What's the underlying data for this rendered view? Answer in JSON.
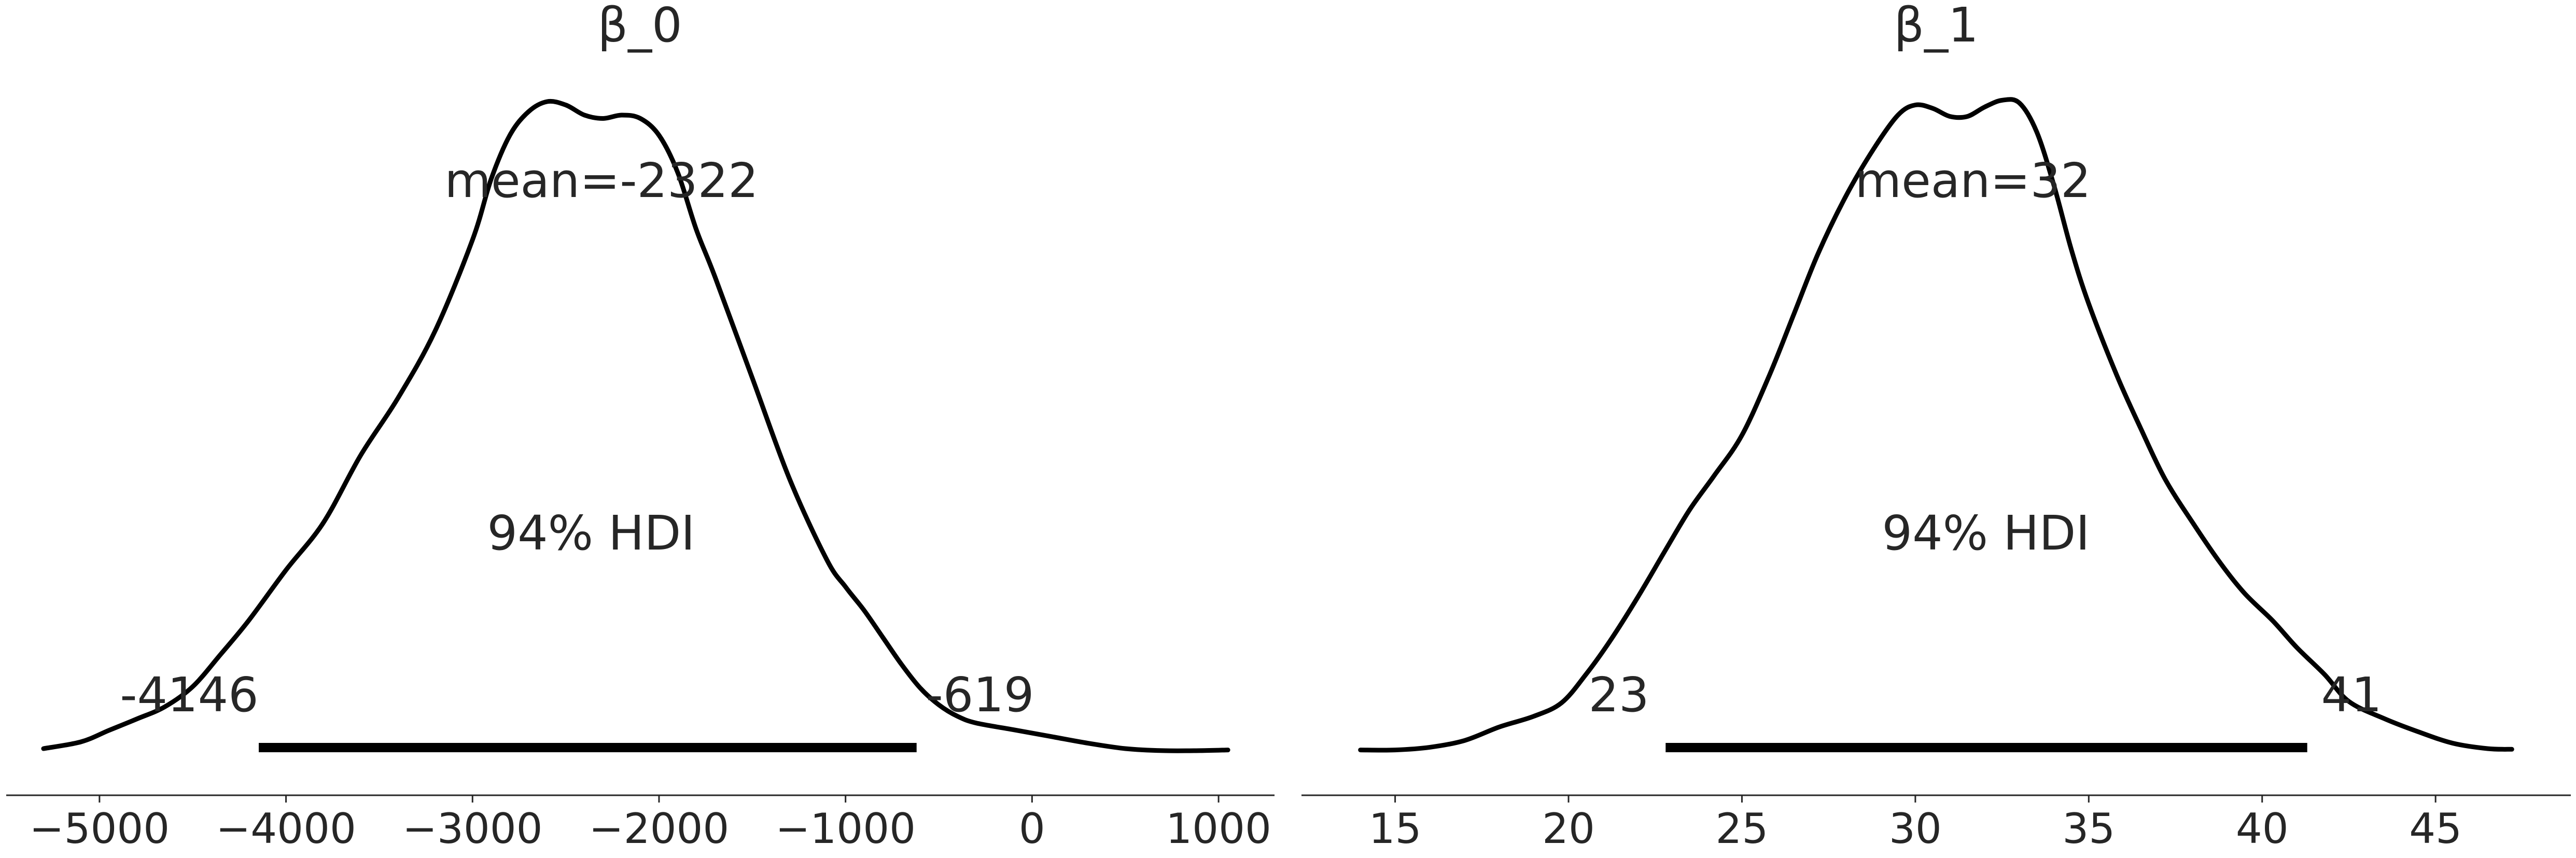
{
  "chart_data": [
    {
      "type": "line",
      "title": "β_0",
      "mean_label": "mean=-2322",
      "hdi_label": "94% HDI",
      "hdi": [
        -4146,
        -619
      ],
      "hdi_low_label": "-4146",
      "hdi_high_label": "-619",
      "xticks": [
        -5000,
        -4000,
        -3000,
        -2000,
        -1000,
        0,
        1000
      ],
      "xtick_labels": [
        "−5000",
        "−4000",
        "−3000",
        "−2000",
        "−1000",
        "0",
        "1000"
      ],
      "xlim": [
        -5500,
        1300
      ],
      "ylim": [
        0,
        1.0
      ],
      "density": {
        "x": [
          -5300,
          -5100,
          -4950,
          -4800,
          -4650,
          -4500,
          -4350,
          -4200,
          -4000,
          -3800,
          -3600,
          -3400,
          -3200,
          -3000,
          -2900,
          -2800,
          -2700,
          -2600,
          -2500,
          -2400,
          -2300,
          -2200,
          -2100,
          -2000,
          -1900,
          -1800,
          -1700,
          -1500,
          -1300,
          -1100,
          -1000,
          -900,
          -800,
          -700,
          -600,
          -500,
          -400,
          -300,
          -100,
          100,
          300,
          500,
          700,
          900,
          1050
        ],
        "y": [
          0.02,
          0.03,
          0.047,
          0.064,
          0.082,
          0.112,
          0.16,
          0.21,
          0.285,
          0.355,
          0.455,
          0.54,
          0.64,
          0.775,
          0.865,
          0.93,
          0.965,
          0.98,
          0.975,
          0.96,
          0.955,
          0.96,
          0.955,
          0.93,
          0.875,
          0.79,
          0.72,
          0.57,
          0.42,
          0.3,
          0.26,
          0.225,
          0.185,
          0.145,
          0.11,
          0.085,
          0.068,
          0.058,
          0.048,
          0.038,
          0.028,
          0.02,
          0.017,
          0.017,
          0.018
        ]
      }
    },
    {
      "type": "line",
      "title": "β_1",
      "mean_label": "mean=32",
      "hdi_label": "94% HDI",
      "hdi": [
        22.8,
        41.3
      ],
      "hdi_low_label": "23",
      "hdi_high_label": "41",
      "xticks": [
        15,
        20,
        25,
        30,
        35,
        40,
        45
      ],
      "xtick_labels": [
        "15",
        "20",
        "25",
        "30",
        "35",
        "40",
        "45"
      ],
      "xlim": [
        12.3,
        48.9
      ],
      "ylim": [
        0,
        1.0
      ],
      "density": {
        "x": [
          14.0,
          15.0,
          16.0,
          17.0,
          18.0,
          19.0,
          19.8,
          20.5,
          21.2,
          22.0,
          22.8,
          23.5,
          24.2,
          25.0,
          25.8,
          26.5,
          27.2,
          28.0,
          28.8,
          29.5,
          30.0,
          30.5,
          31.0,
          31.5,
          32.0,
          32.5,
          33.0,
          33.5,
          34.0,
          34.5,
          35.0,
          35.8,
          36.5,
          37.2,
          38.0,
          38.8,
          39.5,
          40.3,
          41.0,
          41.8,
          42.5,
          43.5,
          44.5,
          45.5,
          46.5,
          47.2
        ],
        "y": [
          0.018,
          0.018,
          0.022,
          0.032,
          0.052,
          0.068,
          0.088,
          0.13,
          0.18,
          0.245,
          0.315,
          0.375,
          0.425,
          0.485,
          0.575,
          0.665,
          0.755,
          0.84,
          0.91,
          0.96,
          0.975,
          0.97,
          0.958,
          0.958,
          0.972,
          0.982,
          0.978,
          0.935,
          0.855,
          0.76,
          0.68,
          0.575,
          0.495,
          0.42,
          0.355,
          0.295,
          0.25,
          0.21,
          0.17,
          0.13,
          0.09,
          0.065,
          0.045,
          0.028,
          0.02,
          0.019
        ]
      }
    }
  ]
}
